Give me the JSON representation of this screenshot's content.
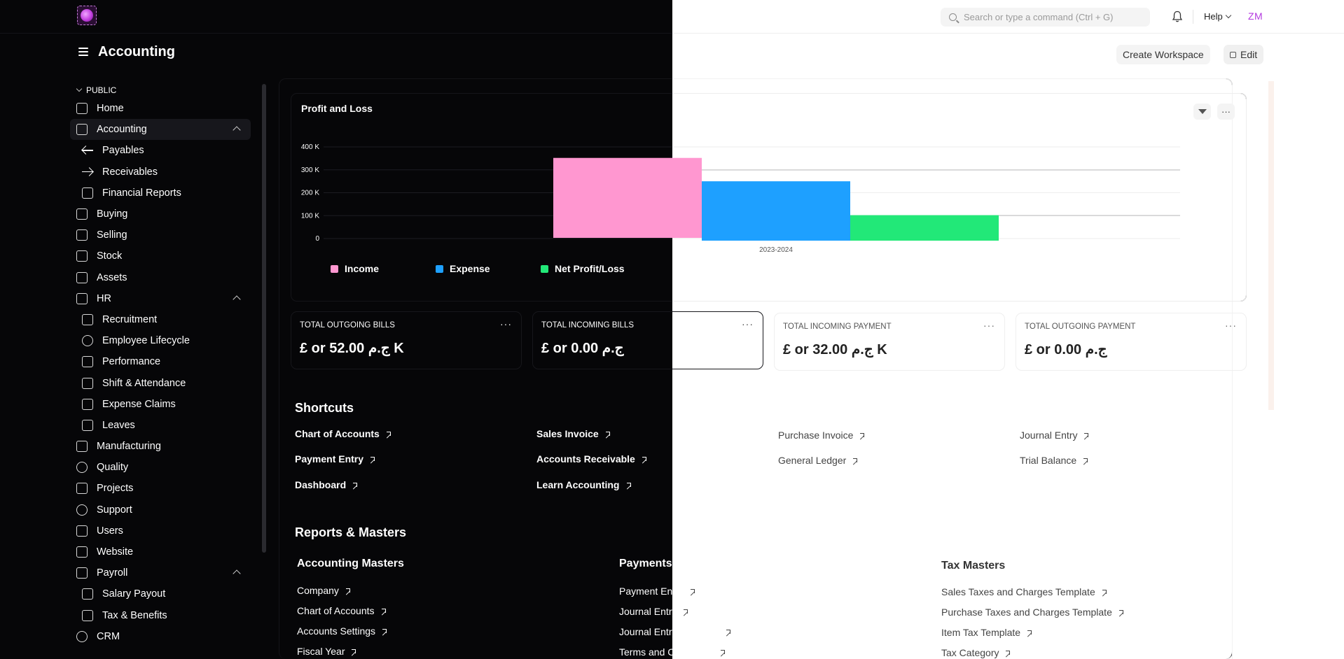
{
  "navbar": {
    "search_placeholder": "Search or type a command (Ctrl + G)",
    "help_label": "Help",
    "avatar_initials": "ZM"
  },
  "page": {
    "title": "Accounting",
    "create_workspace_label": "Create Workspace",
    "edit_label": "Edit"
  },
  "sidebar": {
    "section_label": "PUBLIC",
    "items": [
      {
        "label": "Home",
        "icon": "tools-icon"
      },
      {
        "label": "Accounting",
        "icon": "accounting-icon",
        "active": true,
        "expanded": true
      },
      {
        "label": "Payables",
        "icon": "arrow-left-icon",
        "child": true
      },
      {
        "label": "Receivables",
        "icon": "arrow-right-icon",
        "child": true
      },
      {
        "label": "Financial Reports",
        "icon": "file-icon",
        "child": true
      },
      {
        "label": "Buying",
        "icon": "buying-icon"
      },
      {
        "label": "Selling",
        "icon": "selling-icon"
      },
      {
        "label": "Stock",
        "icon": "box-icon"
      },
      {
        "label": "Assets",
        "icon": "assets-icon"
      },
      {
        "label": "HR",
        "icon": "hr-icon",
        "expanded": true
      },
      {
        "label": "Recruitment",
        "icon": "users-icon",
        "child": true
      },
      {
        "label": "Employee Lifecycle",
        "icon": "user-icon",
        "child": true
      },
      {
        "label": "Performance",
        "icon": "star-icon",
        "child": true
      },
      {
        "label": "Shift & Attendance",
        "icon": "attendance-icon",
        "child": true
      },
      {
        "label": "Expense Claims",
        "icon": "receipt-icon",
        "child": true
      },
      {
        "label": "Leaves",
        "icon": "heart-icon",
        "child": true
      },
      {
        "label": "Manufacturing",
        "icon": "factory-icon"
      },
      {
        "label": "Quality",
        "icon": "quality-icon"
      },
      {
        "label": "Projects",
        "icon": "folder-icon"
      },
      {
        "label": "Support",
        "icon": "headset-icon"
      },
      {
        "label": "Users",
        "icon": "users-icon"
      },
      {
        "label": "Website",
        "icon": "website-icon"
      },
      {
        "label": "Payroll",
        "icon": "payroll-icon",
        "expanded": true
      },
      {
        "label": "Salary Payout",
        "icon": "coins-icon",
        "child": true
      },
      {
        "label": "Tax & Benefits",
        "icon": "tax-icon",
        "child": true
      },
      {
        "label": "CRM",
        "icon": "crm-icon"
      }
    ]
  },
  "chart": {
    "title": "Profit and Loss",
    "legend": [
      {
        "label": "Income",
        "color": "#ff97d0"
      },
      {
        "label": "Expense",
        "color": "#1ea0ff"
      },
      {
        "label": "Net Profit/Loss",
        "color": "#22e878"
      }
    ]
  },
  "chart_data": {
    "type": "bar",
    "title": "Profit and Loss",
    "categories": [
      "2023-2024"
    ],
    "series": [
      {
        "name": "Income",
        "values": [
          352000
        ]
      },
      {
        "name": "Expense",
        "values": [
          250000
        ]
      },
      {
        "name": "Net Profit/Loss",
        "values": [
          102000
        ]
      }
    ],
    "y_ticks": [
      "0",
      "100 K",
      "200 K",
      "300 K",
      "400 K"
    ],
    "ylim": [
      0,
      400000
    ],
    "grid": true,
    "legend_position": "bottom-left"
  },
  "number_cards": [
    {
      "label": "TOTAL OUTGOING BILLS",
      "value": "£ or 52.00 ج.م K"
    },
    {
      "label": "TOTAL INCOMING BILLS",
      "value": "£ or 0.00 ج.م"
    },
    {
      "label": "TOTAL INCOMING PAYMENT",
      "value": "£ or 32.00 ج.م K"
    },
    {
      "label": "TOTAL OUTGOING PAYMENT",
      "value": "£ or 0.00 ج.م"
    }
  ],
  "shortcuts": {
    "title": "Shortcuts",
    "links": [
      "Chart of Accounts",
      "Payment Entry",
      "Dashboard",
      "Sales Invoice",
      "Accounts Receivable",
      "Learn Accounting",
      "Purchase Invoice",
      "General Ledger",
      "Journal Entry",
      "Trial Balance"
    ]
  },
  "reports": {
    "title": "Reports & Masters",
    "accounting_masters": {
      "title": "Accounting Masters",
      "links": [
        "Company",
        "Chart of Accounts",
        "Accounts Settings",
        "Fiscal Year"
      ]
    },
    "payments": {
      "title": "Payments",
      "links": [
        "Payment Entry",
        "Journal Entry",
        "Journal Entry Template",
        "Terms and Conditions"
      ]
    },
    "tax_masters": {
      "title": "Tax Masters",
      "links": [
        "Sales Taxes and Charges Template",
        "Purchase Taxes and Charges Template",
        "Item Tax Template",
        "Tax Category"
      ]
    }
  }
}
